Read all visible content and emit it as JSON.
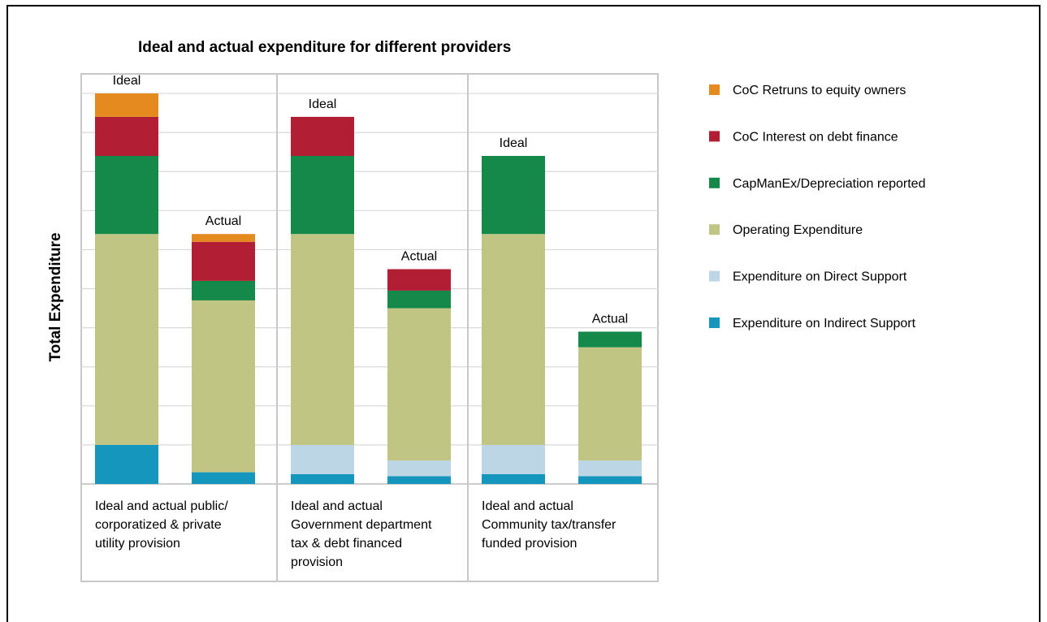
{
  "chart_data": {
    "type": "bar",
    "stacked": true,
    "title": "Ideal and actual expenditure for different providers",
    "ylabel": "Total Expenditure",
    "ylim": [
      0,
      10.5
    ],
    "grid": true,
    "legend_position": "right",
    "groups": [
      {
        "label_lines": [
          "Ideal and actual public/",
          "corporatized & private",
          "utility provision"
        ]
      },
      {
        "label_lines": [
          "Ideal and actual",
          "Government department",
          "tax & debt financed",
          "provision"
        ]
      },
      {
        "label_lines": [
          "Ideal and actual",
          "Community tax/transfer",
          "funded provision"
        ]
      }
    ],
    "series": [
      {
        "name": "Expenditure on Indirect Support",
        "color": "#1596bd"
      },
      {
        "name": "Expenditure on Direct Support",
        "color": "#bcd6e6"
      },
      {
        "name": "Operating Expenditure",
        "color": "#c1c584"
      },
      {
        "name": "CapManEx/Depreciation reported",
        "color": "#15894a"
      },
      {
        "name": "CoC Interest on debt finance",
        "color": "#b21f35"
      },
      {
        "name": "CoC Retruns to equity owners",
        "color": "#e58a1f"
      }
    ],
    "bars": [
      {
        "group": 0,
        "label": "Ideal",
        "values": [
          1.0,
          0.0,
          5.4,
          2.0,
          1.0,
          0.6
        ]
      },
      {
        "group": 0,
        "label": "Actual",
        "values": [
          0.3,
          0.0,
          4.4,
          0.5,
          1.0,
          0.2
        ]
      },
      {
        "group": 1,
        "label": "Ideal",
        "values": [
          0.25,
          0.75,
          5.4,
          2.0,
          1.0,
          0.0
        ]
      },
      {
        "group": 1,
        "label": "Actual",
        "values": [
          0.2,
          0.4,
          3.9,
          0.45,
          0.55,
          0.0
        ]
      },
      {
        "group": 2,
        "label": "Ideal",
        "values": [
          0.25,
          0.75,
          5.4,
          2.0,
          0.0,
          0.0
        ]
      },
      {
        "group": 2,
        "label": "Actual",
        "values": [
          0.2,
          0.4,
          2.9,
          0.4,
          0.0,
          0.0
        ]
      }
    ],
    "legend_order": [
      5,
      4,
      3,
      2,
      1,
      0
    ]
  }
}
